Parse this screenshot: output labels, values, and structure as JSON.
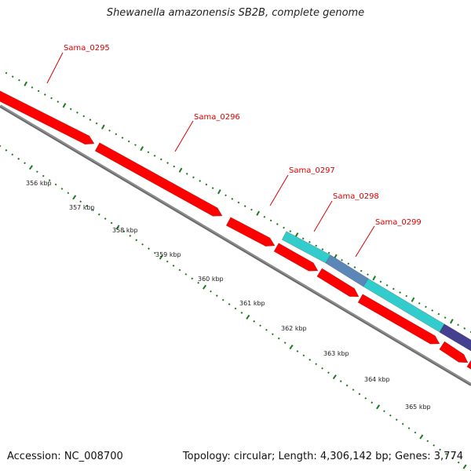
{
  "title": "Shewanella amazonensis SB2B, complete genome",
  "footer": {
    "accession": "Accession: NC_008700",
    "summary": "Topology: circular; Length: 4,306,142 bp; Genes: 3,774"
  },
  "colors": {
    "background": "#ffffff",
    "cds_red": "#ff0000",
    "cds_red_dark": "#b80000",
    "cyan_feature": "#33cccc",
    "steelblue_feature": "#5b86b8",
    "purple_feature": "#453f8f",
    "backbone": "#8c8c8c",
    "tick_green": "#1f7a1f",
    "gene_label": "#dd0000"
  },
  "gene_labels": [
    {
      "text": "Sama_0295"
    },
    {
      "text": "Sama_0296"
    },
    {
      "text": "Sama_0297"
    },
    {
      "text": "Sama_0298"
    },
    {
      "text": "Sama_0299"
    }
  ],
  "scale": {
    "unit": "kbp",
    "labels": [
      "356 kbp",
      "357 kbp",
      "358 kbp",
      "359 kbp",
      "360 kbp",
      "361 kbp",
      "362 kbp",
      "363 kbp",
      "364 kbp",
      "365 kbp"
    ]
  }
}
